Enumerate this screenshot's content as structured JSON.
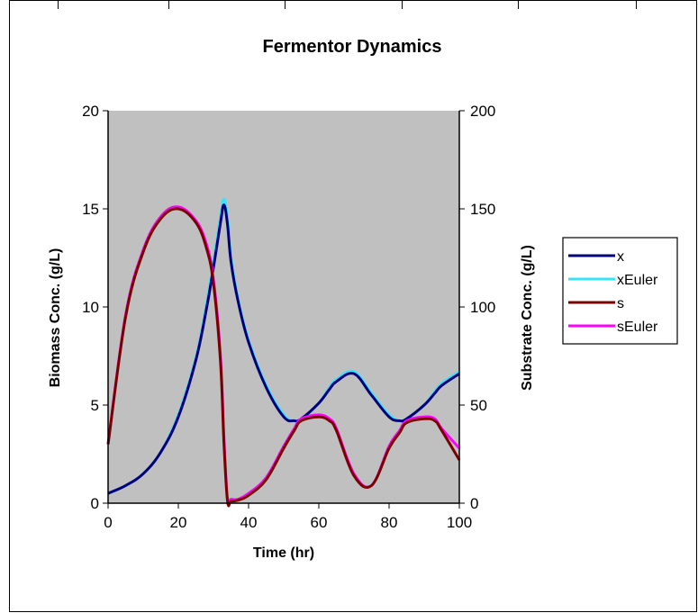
{
  "chart_data": {
    "type": "line",
    "title": "Fermentor Dynamics",
    "xlabel": "Time (hr)",
    "ylabel": "Biomass Conc. (g/L)",
    "y2label": "Substrate Conc. (g/L)",
    "xlim": [
      0,
      100
    ],
    "ylim": [
      0,
      20
    ],
    "y2lim": [
      0,
      200
    ],
    "xticks": [
      0,
      20,
      40,
      60,
      80,
      100
    ],
    "yticks": [
      0,
      5,
      10,
      15,
      20
    ],
    "y2ticks": [
      0,
      50,
      100,
      150,
      200
    ],
    "x": [
      0,
      5,
      10,
      15,
      20,
      25,
      28,
      30,
      32,
      33,
      34,
      35,
      37,
      40,
      45,
      50,
      53,
      55,
      60,
      63,
      65,
      70,
      75,
      80,
      83,
      85,
      90,
      93,
      95,
      100
    ],
    "series": [
      {
        "name": "x",
        "axis": "left",
        "color": "#00007a",
        "values": [
          0.5,
          0.9,
          1.5,
          2.6,
          4.4,
          7.3,
          9.9,
          12.0,
          14.3,
          15.2,
          14.2,
          12.3,
          10.3,
          8.2,
          5.9,
          4.4,
          4.2,
          4.3,
          5.1,
          5.8,
          6.2,
          6.6,
          5.5,
          4.4,
          4.2,
          4.3,
          5.0,
          5.6,
          6.0,
          6.6
        ]
      },
      {
        "name": "xEuler",
        "axis": "left",
        "color": "#33e6ff",
        "values": [
          0.5,
          0.9,
          1.5,
          2.6,
          4.5,
          7.4,
          10.1,
          12.3,
          14.6,
          15.5,
          14.5,
          12.5,
          10.4,
          8.3,
          6.0,
          4.5,
          4.2,
          4.3,
          5.1,
          5.9,
          6.3,
          6.7,
          5.6,
          4.5,
          4.2,
          4.3,
          5.0,
          5.7,
          6.1,
          6.7
        ]
      },
      {
        "name": "s",
        "axis": "right",
        "color": "#7a0000",
        "values": [
          30,
          95,
          128,
          145,
          150,
          143,
          130,
          112,
          72,
          30,
          1,
          1,
          1.5,
          4,
          12,
          28,
          37,
          42,
          44,
          42,
          37,
          14,
          9,
          28,
          36,
          41,
          43,
          42,
          37,
          22
        ]
      },
      {
        "name": "sEuler",
        "axis": "right",
        "color": "#ff00ff",
        "values": [
          30,
          96,
          129,
          146,
          151,
          144,
          132,
          114,
          75,
          33,
          2,
          2,
          2,
          5,
          13,
          29,
          38,
          43,
          45,
          43,
          38,
          15,
          9,
          29,
          37,
          42,
          44,
          43,
          38,
          28
        ]
      }
    ],
    "legend_position": "right",
    "plot_background": "#c0c0c0"
  }
}
